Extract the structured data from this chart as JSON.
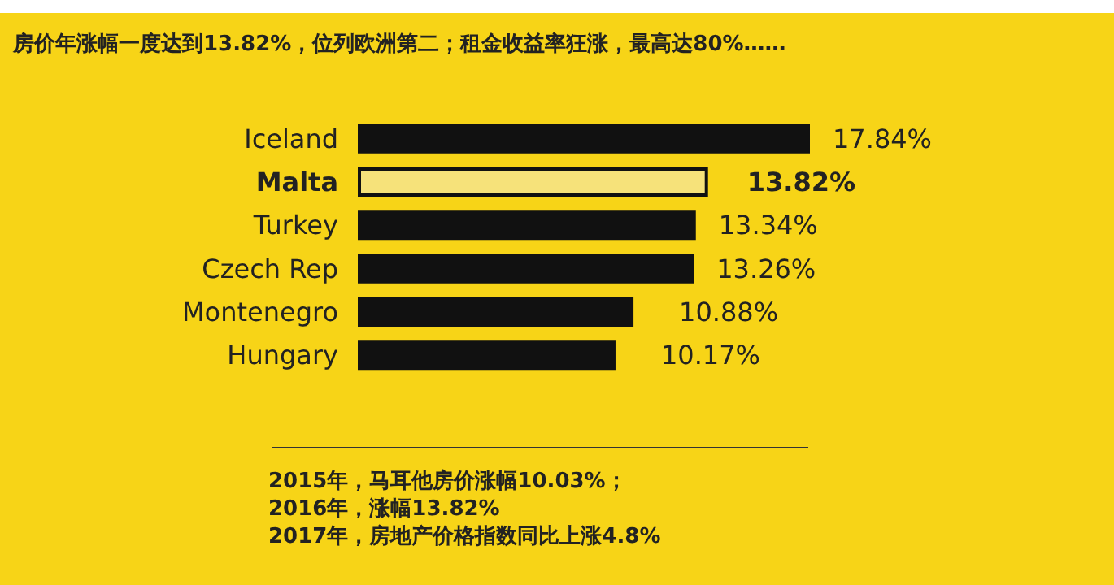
{
  "chart_data": {
    "type": "bar",
    "orientation": "horizontal",
    "title": "房价年涨幅一度达到13.82%，位列欧洲第二；租金收益率狂涨，最高达80%……",
    "categories": [
      "Iceland",
      "Malta",
      "Turkey",
      "Czech Rep",
      "Montenegro",
      "Hungary"
    ],
    "values": [
      17.84,
      13.82,
      13.34,
      13.26,
      10.88,
      10.17
    ],
    "colors": [
      "#111111",
      "#f6e27a",
      "#111111",
      "#111111",
      "#111111",
      "#111111"
    ],
    "value_labels": [
      "17.84%",
      "13.82%",
      "13.34%",
      "13.26%",
      "10.88%",
      "10.17%"
    ],
    "annotations": [
      "2015年，马耳他房价涨幅10.03%；",
      "2016年，涨幅13.82%",
      "2017年，房地产价格指数同比上涨4.8%"
    ]
  }
}
